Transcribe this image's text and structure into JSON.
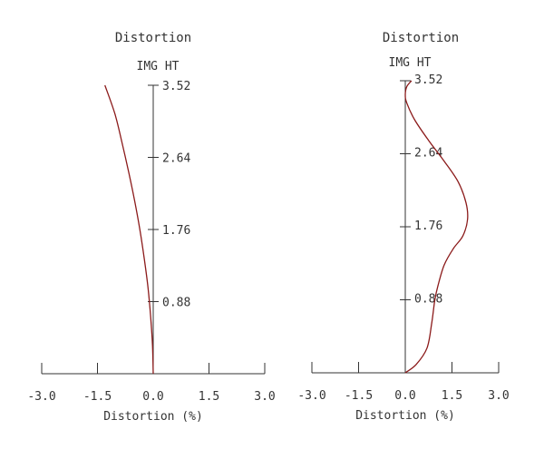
{
  "chart_data": [
    {
      "type": "line",
      "title": "Distortion",
      "xlabel": "Distortion (%)",
      "ylabel": "IMG HT",
      "xlim": [
        -3.0,
        3.0
      ],
      "ylim": [
        0,
        3.52
      ],
      "xticks": [
        "-3.0",
        "-1.5",
        "0.0",
        "1.5",
        "3.0"
      ],
      "xtick_values": [
        -3.0,
        -1.5,
        0.0,
        1.5,
        3.0
      ],
      "yticks": [
        "0.88",
        "1.76",
        "2.64",
        "3.52"
      ],
      "ytick_values": [
        0.88,
        1.76,
        2.64,
        3.52
      ],
      "line_color": "#8b1a1a",
      "series": [
        {
          "x": [
            0,
            -0.02,
            -0.07,
            -0.14,
            -0.24,
            -0.36,
            -0.5,
            -0.66,
            -0.84,
            -1.03,
            -1.3
          ],
          "y": [
            0,
            0.35,
            0.7,
            1.05,
            1.4,
            1.76,
            2.11,
            2.46,
            2.82,
            3.17,
            3.52
          ]
        }
      ]
    },
    {
      "type": "line",
      "title": "Distortion",
      "xlabel": "Distortion (%)",
      "ylabel": "IMG HT",
      "xlim": [
        -3.0,
        3.0
      ],
      "ylim": [
        0,
        3.52
      ],
      "xticks": [
        "-3.0",
        "-1.5",
        "0.0",
        "1.5",
        "3.0"
      ],
      "xtick_values": [
        -3.0,
        -1.5,
        0.0,
        1.5,
        3.0
      ],
      "yticks": [
        "0.88",
        "1.76",
        "2.64",
        "3.52"
      ],
      "ytick_values": [
        0.88,
        1.76,
        2.64,
        3.52
      ],
      "line_color": "#8b1a1a",
      "series": [
        {
          "x": [
            0,
            0.35,
            0.7,
            0.85,
            0.95,
            1.05,
            1.25,
            1.55,
            1.85,
            2.0,
            1.95,
            1.7,
            1.25,
            0.75,
            0.3,
            0.05,
            0.0,
            0.05,
            0.2
          ],
          "y": [
            0,
            0.1,
            0.3,
            0.6,
            0.88,
            1.05,
            1.3,
            1.5,
            1.65,
            1.85,
            2.05,
            2.3,
            2.55,
            2.8,
            3.05,
            3.25,
            3.35,
            3.45,
            3.52
          ]
        }
      ]
    }
  ]
}
